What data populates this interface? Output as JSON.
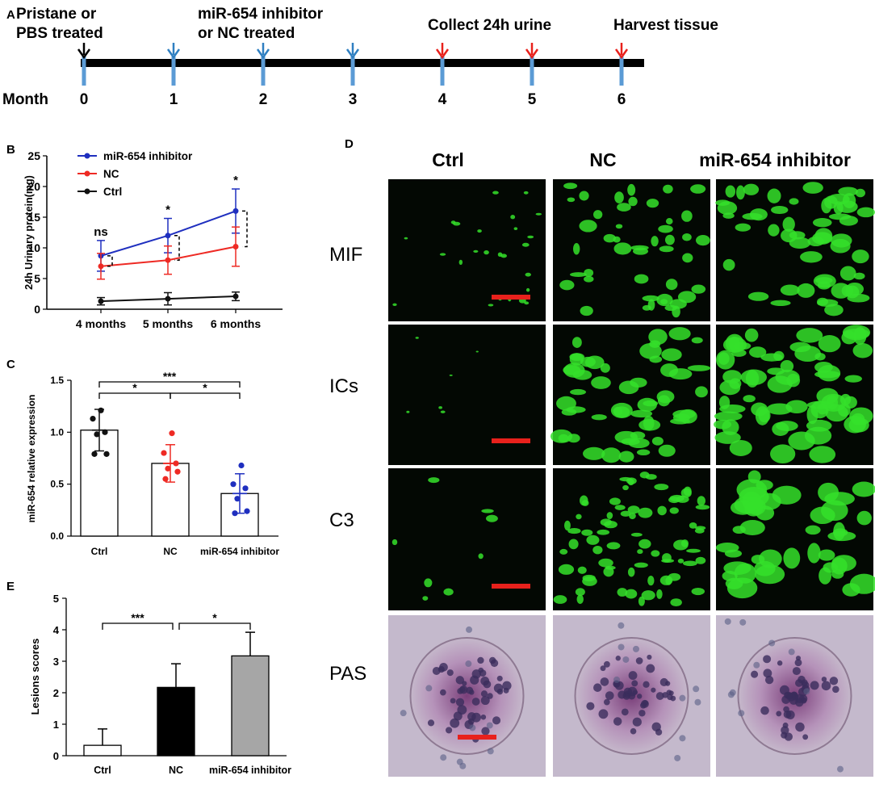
{
  "panels": {
    "A": "A",
    "B": "B",
    "C": "C",
    "D": "D",
    "E": "E"
  },
  "timeline": {
    "axis_label": "Month",
    "ticks": [
      "0",
      "1",
      "2",
      "3",
      "4",
      "5",
      "6"
    ],
    "events": [
      {
        "text": [
          "Pristane or",
          "PBS treated"
        ]
      },
      {
        "text": [
          "miR-654 inhibitor",
          "or NC treated"
        ]
      },
      {
        "text": [
          "Collect 24h  urine"
        ]
      },
      {
        "text": [
          "Harvest tissue"
        ]
      }
    ],
    "arrows": [
      {
        "month": 0,
        "color": "#000000"
      },
      {
        "month": 1,
        "color": "#2f7fc1"
      },
      {
        "month": 2,
        "color": "#2f7fc1"
      },
      {
        "month": 3,
        "color": "#2f7fc1"
      },
      {
        "month": 4,
        "color": "#e8211c"
      },
      {
        "month": 5,
        "color": "#e8211c"
      },
      {
        "month": 6,
        "color": "#e8211c"
      }
    ]
  },
  "chart_data": [
    {
      "panel": "B",
      "type": "line",
      "categories": [
        "4 months",
        "5 months",
        "6 months"
      ],
      "ylabel": "24h Urinary protein(mg)",
      "ylim": [
        0,
        25
      ],
      "yticks": [
        0,
        5,
        10,
        15,
        20,
        25
      ],
      "series": [
        {
          "name": "miR-654 inhibitor",
          "color": "#1f2fbf",
          "values": [
            8.7,
            12.0,
            16.0
          ],
          "errors": [
            2.5,
            2.8,
            3.6
          ]
        },
        {
          "name": "NC",
          "color": "#ee2a24",
          "values": [
            7.0,
            8.0,
            10.2
          ],
          "errors": [
            2.1,
            2.3,
            3.2
          ]
        },
        {
          "name": "Ctrl",
          "color": "#111111",
          "values": [
            1.3,
            1.7,
            2.1
          ],
          "errors": [
            0.6,
            1.0,
            0.7
          ]
        }
      ],
      "significance": [
        "ns",
        "*",
        "*"
      ],
      "legend": "top-left"
    },
    {
      "panel": "C",
      "type": "bar",
      "categories": [
        "Ctrl",
        "NC",
        "miR-654 inhibitor"
      ],
      "values": [
        1.02,
        0.7,
        0.41
      ],
      "errors": [
        0.2,
        0.18,
        0.19
      ],
      "points": [
        [
          1.21,
          1.13,
          1.0,
          0.98,
          0.79,
          0.79
        ],
        [
          0.99,
          0.8,
          0.7,
          0.65,
          0.62,
          0.55
        ],
        [
          0.68,
          0.5,
          0.46,
          0.36,
          0.24,
          0.22
        ]
      ],
      "point_colors": [
        "#111111",
        "#ee2a24",
        "#1f2fbf"
      ],
      "ylabel": "miR-654 relative expression",
      "ylim": [
        0,
        1.5
      ],
      "yticks": [
        "0.0",
        "0.5",
        "1.0",
        "1.5"
      ],
      "significance": [
        {
          "from": 0,
          "to": 2,
          "label": "***"
        },
        {
          "from": 0,
          "to": 1,
          "label": "*"
        },
        {
          "from": 1,
          "to": 2,
          "label": "*"
        }
      ]
    },
    {
      "panel": "E",
      "type": "bar",
      "categories": [
        "Ctrl",
        "NC",
        "miR-654 inhibitor"
      ],
      "values": [
        0.33,
        2.17,
        3.17
      ],
      "errors": [
        0.52,
        0.75,
        0.75
      ],
      "fills": [
        "#ffffff",
        "#000000",
        "#a6a6a6"
      ],
      "ylabel": "Lesions scores",
      "ylim": [
        0,
        5
      ],
      "yticks": [
        "0",
        "1",
        "2",
        "3",
        "4",
        "5"
      ],
      "significance": [
        {
          "from": 0,
          "to": 1,
          "label": "***"
        },
        {
          "from": 1,
          "to": 2,
          "label": "*"
        }
      ]
    }
  ],
  "micrographs": {
    "columns": [
      "Ctrl",
      "NC",
      "miR-654 inhibitor"
    ],
    "rows": [
      "MIF",
      "ICs",
      "C3",
      "PAS"
    ]
  },
  "colors": {
    "scale_bar": "#e8211c",
    "fluor_bg": "#030803",
    "fluor": "#35e02a",
    "pas_bg": "#c4b9cc"
  }
}
